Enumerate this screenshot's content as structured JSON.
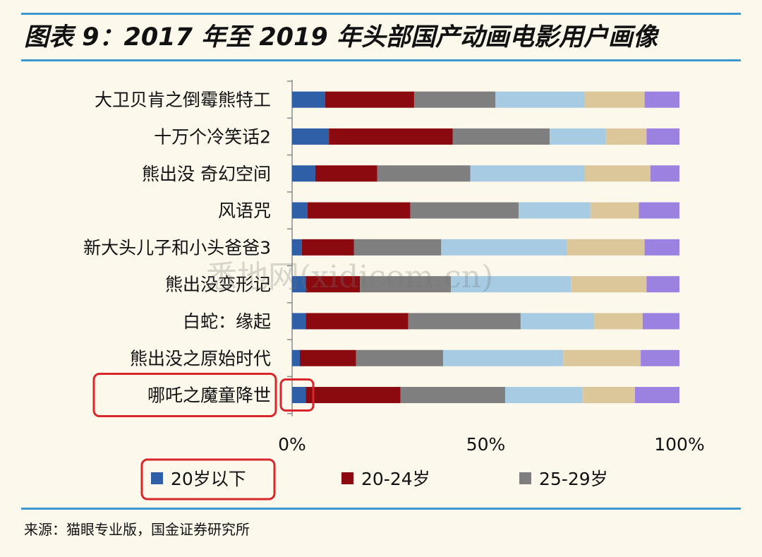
{
  "title": "图表 9：2017 年至 2019 年头部国产动画电影用户画像",
  "source": "来源：猫眼专业版，国金证券研究所",
  "watermark": "悉地网(xidicom.cn)",
  "colors": {
    "accent_rule": "#3d97cf",
    "highlight": "#d9262b",
    "background": "#fcf8ec"
  },
  "chart_data": {
    "type": "bar",
    "orientation": "horizontal",
    "stacked": true,
    "percent_stacked": true,
    "categories": [
      "大卫贝肯之倒霉熊特工",
      "十万个冷笑话2",
      "熊出没 奇幻空间",
      "风语咒",
      "新大头儿子和小头爸爸3",
      "熊出没变形记",
      "白蛇：缘起",
      "熊出没之原始时代",
      "哪吒之魔童降世"
    ],
    "series": [
      {
        "name": "20岁以下",
        "color": "#2f5fa7",
        "values": [
          8.5,
          9.5,
          6,
          4,
          2.5,
          3.5,
          3.5,
          2,
          3.5
        ]
      },
      {
        "name": "20-24岁",
        "color": "#8b0a0f",
        "values": [
          23,
          32,
          16,
          26.5,
          13.5,
          14,
          26.5,
          14.5,
          24.5
        ]
      },
      {
        "name": "25-29岁",
        "color": "#7f7f7f",
        "values": [
          21,
          25,
          24,
          28,
          22.5,
          23.5,
          29,
          22.5,
          27
        ]
      },
      {
        "name": "",
        "color": "#a6cbe3",
        "values": [
          23,
          14.5,
          29.5,
          18.5,
          32.5,
          31,
          19,
          31,
          20
        ]
      },
      {
        "name": "",
        "color": "#dbc79a",
        "values": [
          15.5,
          10.5,
          17,
          12.5,
          20,
          19.5,
          12.5,
          20,
          13.5
        ]
      },
      {
        "name": "",
        "color": "#9b82e0",
        "values": [
          9,
          8.5,
          7.5,
          10.5,
          9,
          8.5,
          9.5,
          10,
          11.5
        ]
      }
    ],
    "xlim": [
      0,
      100
    ],
    "xticks": [
      "0%",
      "50%",
      "100%"
    ],
    "legend_position": "bottom",
    "highlights": [
      "category label 哪吒之魔童降世",
      "20岁以下 segment of 哪吒之魔童降世",
      "legend entry 20岁以下"
    ]
  }
}
